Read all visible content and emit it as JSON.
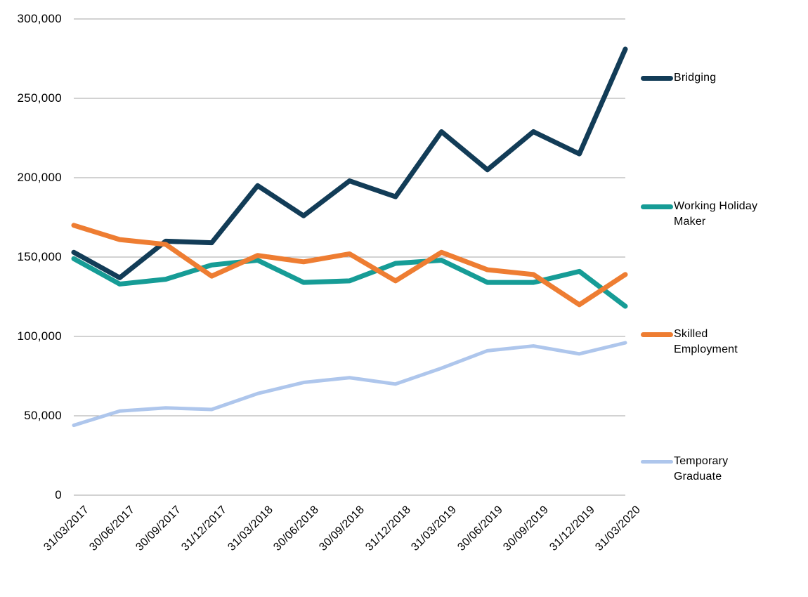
{
  "chart_data": {
    "type": "line",
    "title": "",
    "xlabel": "",
    "ylabel": "",
    "grid": true,
    "legend_position": "right",
    "ylim": [
      0,
      300000
    ],
    "gridline_color": "#a6a6a6",
    "categories": [
      "31/03/2017",
      "30/06/2017",
      "30/09/2017",
      "31/12/2017",
      "31/03/2018",
      "30/06/2018",
      "30/09/2018",
      "31/12/2018",
      "31/03/2019",
      "30/06/2019",
      "30/09/2019",
      "31/12/2019",
      "31/03/2020"
    ],
    "y_ticks": [
      {
        "label": "300,000",
        "value": 300000
      },
      {
        "label": "250,000",
        "value": 250000
      },
      {
        "label": "200,000",
        "value": 200000
      },
      {
        "label": "150,000",
        "value": 150000
      },
      {
        "label": "100,000",
        "value": 100000
      },
      {
        "label": "50,000",
        "value": 50000
      },
      {
        "label": "0",
        "value": 0
      }
    ],
    "series": [
      {
        "name": "Bridging",
        "color": "#123c57",
        "stroke_width": 7,
        "values": [
          153000,
          137000,
          160000,
          159000,
          195000,
          176000,
          198000,
          188000,
          229000,
          205000,
          229000,
          215000,
          281000
        ]
      },
      {
        "name": "Working Holiday Maker",
        "color": "#169c96",
        "stroke_width": 7,
        "values": [
          149000,
          133000,
          136000,
          145000,
          148000,
          134000,
          135000,
          146000,
          148000,
          134000,
          134000,
          141000,
          119000
        ]
      },
      {
        "name": "Skilled Employment",
        "color": "#ee7d32",
        "stroke_width": 7,
        "values": [
          170000,
          161000,
          158000,
          138000,
          151000,
          147000,
          152000,
          135000,
          153000,
          142000,
          139000,
          120000,
          139000
        ]
      },
      {
        "name": "Temporary Graduate",
        "color": "#aec6ec",
        "stroke_width": 5,
        "values": [
          44000,
          53000,
          55000,
          54000,
          64000,
          71000,
          74000,
          70000,
          80000,
          91000,
          94000,
          89000,
          96000
        ]
      }
    ]
  }
}
